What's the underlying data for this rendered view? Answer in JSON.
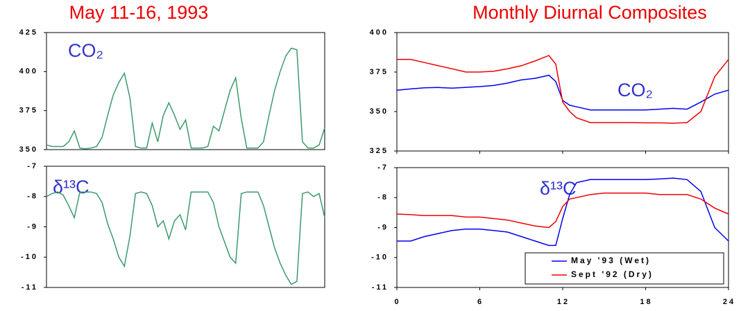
{
  "chart_data": [
    {
      "type": "line",
      "title": "May 11-16, 1993",
      "annotation": "CO₂",
      "color": "#3a9a6a",
      "values": [
        353,
        352,
        352,
        352,
        355,
        362,
        351,
        350.5,
        351,
        352,
        358,
        372,
        385,
        393,
        399,
        383,
        352,
        351,
        351,
        367,
        355,
        372,
        380,
        372,
        363,
        369,
        351,
        351,
        351,
        352,
        365,
        362,
        375,
        388,
        396,
        370,
        351,
        351,
        351,
        355,
        372,
        388,
        400,
        410,
        415,
        414,
        355,
        351,
        351,
        353,
        364
      ],
      "ylim": [
        350,
        425
      ],
      "yticks": [
        350,
        375,
        400,
        425
      ]
    },
    {
      "type": "line",
      "annotation": "δ¹³C",
      "color": "#3a9a6a",
      "values": [
        -8.0,
        -7.9,
        -7.85,
        -7.95,
        -8.3,
        -8.7,
        -7.85,
        -7.85,
        -7.85,
        -7.9,
        -8.2,
        -8.9,
        -9.4,
        -10.0,
        -10.3,
        -9.3,
        -7.9,
        -7.85,
        -7.9,
        -8.3,
        -9.0,
        -8.8,
        -9.4,
        -8.8,
        -8.6,
        -9.1,
        -7.85,
        -7.85,
        -7.85,
        -7.85,
        -8.2,
        -9.0,
        -9.5,
        -10.0,
        -10.2,
        -7.9,
        -7.85,
        -7.85,
        -7.85,
        -8.3,
        -9.0,
        -9.7,
        -10.2,
        -10.6,
        -10.9,
        -10.8,
        -7.9,
        -7.85,
        -8.0,
        -7.9,
        -8.7
      ],
      "ylim": [
        -11,
        -7
      ],
      "yticks": [
        -11,
        -10,
        -9,
        -8,
        -7
      ]
    },
    {
      "type": "line",
      "title": "Monthly Diurnal Composites",
      "annotation": "CO₂",
      "x": [
        0,
        1,
        2,
        3,
        4,
        5,
        6,
        7,
        8,
        9,
        10,
        11,
        11.5,
        12,
        12.5,
        13,
        14,
        15,
        16,
        17,
        18,
        19,
        20,
        21,
        22,
        23,
        24
      ],
      "xlim": [
        0,
        24
      ],
      "series": [
        {
          "color": "#0000ee",
          "values": [
            363.5,
            364.3,
            365,
            365.2,
            364.8,
            365.3,
            365.8,
            366.5,
            368,
            370,
            371,
            373,
            369,
            357,
            354,
            353,
            351,
            351,
            351,
            351,
            351,
            351.5,
            352,
            351.5,
            356,
            361,
            363.5
          ]
        },
        {
          "color": "#ee0000",
          "values": [
            383,
            383,
            381,
            379,
            377,
            375,
            375,
            375.5,
            377,
            379,
            382,
            385.5,
            380,
            356,
            350,
            346,
            343,
            343,
            343,
            343,
            342.8,
            342.8,
            342.6,
            343,
            350,
            372,
            383
          ]
        }
      ],
      "ylim": [
        325,
        400
      ],
      "yticks": [
        325,
        350,
        375,
        400
      ]
    },
    {
      "type": "line",
      "annotation": "δ¹³C",
      "x": [
        0,
        1,
        2,
        3,
        4,
        5,
        6,
        7,
        8,
        9,
        10,
        11,
        11.5,
        12,
        12.5,
        13,
        14,
        15,
        16,
        17,
        18,
        19,
        20,
        21,
        22,
        23,
        24
      ],
      "xlim": [
        0,
        24
      ],
      "xticks": [
        0,
        6,
        12,
        18,
        24
      ],
      "series": [
        {
          "name": "May '93 (Wet)",
          "color": "#0000ee",
          "values": [
            -9.45,
            -9.45,
            -9.3,
            -9.2,
            -9.1,
            -9.05,
            -9.05,
            -9.1,
            -9.15,
            -9.3,
            -9.45,
            -9.6,
            -9.6,
            -8.7,
            -7.9,
            -7.5,
            -7.4,
            -7.4,
            -7.4,
            -7.4,
            -7.4,
            -7.38,
            -7.35,
            -7.4,
            -7.8,
            -9,
            -9.45
          ]
        },
        {
          "name": "Sept '92 (Dry)",
          "color": "#ee0000",
          "values": [
            -8.55,
            -8.57,
            -8.6,
            -8.6,
            -8.6,
            -8.65,
            -8.65,
            -8.7,
            -8.75,
            -8.85,
            -8.95,
            -9,
            -8.8,
            -8.3,
            -8.05,
            -8,
            -7.9,
            -7.85,
            -7.85,
            -7.85,
            -7.85,
            -7.9,
            -7.9,
            -7.9,
            -8.05,
            -8.35,
            -8.55
          ]
        }
      ],
      "ylim": [
        -11,
        -7
      ],
      "yticks": [
        -11,
        -10,
        -9,
        -8,
        -7
      ],
      "legend": "lower right"
    }
  ]
}
